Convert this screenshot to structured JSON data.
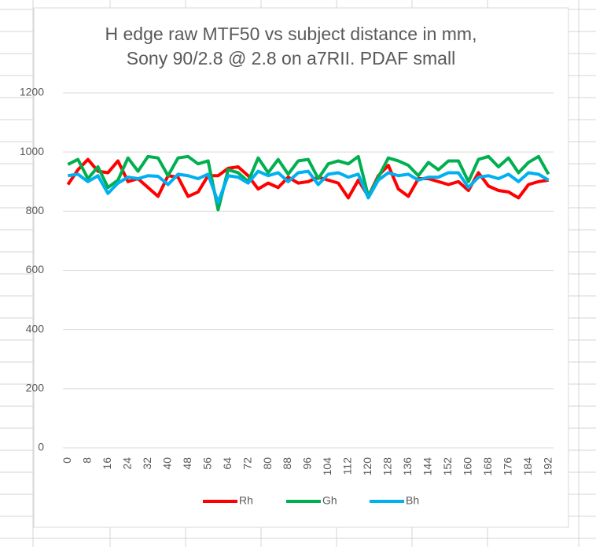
{
  "chart_data": {
    "type": "line",
    "title": [
      "H edge raw MTF50 vs subject distance in mm,",
      "Sony 90/2.8 @ 2.8 on a7RII. PDAF small"
    ],
    "categories": [
      0,
      null,
      8,
      null,
      16,
      null,
      24,
      null,
      32,
      null,
      40,
      null,
      48,
      null,
      56,
      null,
      64,
      null,
      72,
      null,
      80,
      null,
      88,
      null,
      96,
      null,
      104,
      null,
      112,
      null,
      120,
      null,
      128,
      null,
      136,
      null,
      144,
      null,
      152,
      null,
      160,
      null,
      168,
      null,
      176,
      null,
      184,
      null,
      192
    ],
    "series": [
      {
        "name": "Rh",
        "color": "#ff0000",
        "values": [
          890,
          940,
          975,
          935,
          930,
          970,
          900,
          910,
          880,
          850,
          920,
          915,
          850,
          865,
          920,
          920,
          945,
          950,
          920,
          875,
          895,
          880,
          915,
          895,
          900,
          915,
          905,
          895,
          845,
          905,
          850,
          920,
          955,
          875,
          850,
          910,
          910,
          900,
          890,
          900,
          870,
          930,
          885,
          870,
          865,
          845,
          890,
          900,
          905
        ]
      },
      {
        "name": "Gh",
        "color": "#00b050",
        "values": [
          958,
          975,
          910,
          950,
          880,
          905,
          980,
          935,
          985,
          980,
          920,
          980,
          985,
          960,
          970,
          805,
          940,
          930,
          900,
          980,
          930,
          975,
          925,
          970,
          975,
          910,
          960,
          970,
          960,
          985,
          850,
          915,
          980,
          970,
          955,
          920,
          965,
          940,
          970,
          970,
          900,
          975,
          985,
          950,
          980,
          930,
          965,
          985,
          925
        ]
      },
      {
        "name": "Bh",
        "color": "#00b0f0",
        "values": [
          920,
          925,
          900,
          920,
          860,
          895,
          915,
          910,
          920,
          918,
          890,
          925,
          920,
          910,
          925,
          830,
          920,
          915,
          895,
          935,
          920,
          930,
          900,
          930,
          935,
          890,
          925,
          930,
          915,
          925,
          845,
          905,
          930,
          920,
          925,
          905,
          915,
          915,
          930,
          930,
          880,
          915,
          920,
          910,
          925,
          900,
          930,
          925,
          905
        ]
      }
    ],
    "ylim": [
      0,
      1200
    ],
    "yticks": [
      0,
      200,
      400,
      600,
      800,
      1000,
      1200
    ],
    "grid": true,
    "legend": "bottom"
  }
}
